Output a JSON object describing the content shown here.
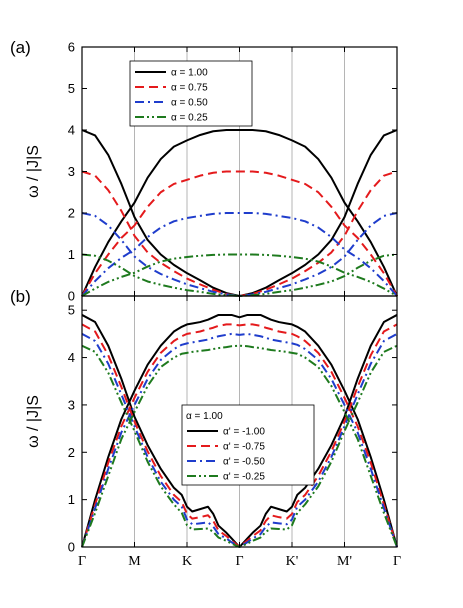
{
  "chart_data": [
    {
      "type": "line",
      "panel_label": "(a)",
      "ylabel": "ω / |J|S",
      "xlabel": "",
      "x_ticks": [
        "Γ",
        "M",
        "K",
        "Γ",
        "K'",
        "M'",
        "Γ"
      ],
      "ylim": [
        0,
        6
      ],
      "y_ticks": [
        0,
        1,
        2,
        3,
        4,
        5,
        6
      ],
      "grid": "vertical lines at high-symmetry points",
      "legend_position": "upper-left",
      "legend_header": "",
      "x": [
        0,
        0.25,
        0.5,
        0.75,
        1,
        1.25,
        1.5,
        1.75,
        2,
        2.25,
        2.5,
        2.75,
        3,
        3.25,
        3.5,
        3.75,
        4,
        4.25,
        4.5,
        4.75,
        5,
        5.25,
        5.5,
        5.75,
        6
      ],
      "series": [
        {
          "name": "α = 1.00",
          "color": "#000000",
          "dash": "solid",
          "branches": [
            [
              4.0,
              3.87,
              3.4,
              2.7,
              1.9,
              1.35,
              1.0,
              0.75,
              0.55,
              0.38,
              0.2,
              0.07,
              0.0,
              0.07,
              0.2,
              0.38,
              0.55,
              0.75,
              1.0,
              1.35,
              1.9,
              2.7,
              3.4,
              3.87,
              4.0
            ],
            [
              0.0,
              0.7,
              1.3,
              1.8,
              2.25,
              2.85,
              3.3,
              3.6,
              3.75,
              3.88,
              3.97,
              4.0,
              4.0,
              4.0,
              3.97,
              3.88,
              3.75,
              3.6,
              3.3,
              2.85,
              2.25,
              1.8,
              1.3,
              0.7,
              0.0
            ]
          ]
        },
        {
          "name": "α = 0.75",
          "color": "#e41a1c",
          "dash": "dash",
          "branches": [
            [
              3.0,
              2.9,
              2.55,
              2.05,
              1.45,
              1.05,
              0.8,
              0.6,
              0.42,
              0.28,
              0.15,
              0.05,
              0.0,
              0.05,
              0.15,
              0.28,
              0.42,
              0.6,
              0.8,
              1.05,
              1.45,
              2.05,
              2.55,
              2.9,
              3.0
            ],
            [
              0.0,
              0.55,
              1.0,
              1.4,
              1.7,
              2.15,
              2.5,
              2.7,
              2.8,
              2.9,
              2.97,
              3.0,
              3.0,
              3.0,
              2.97,
              2.9,
              2.8,
              2.7,
              2.5,
              2.15,
              1.7,
              1.4,
              1.0,
              0.55,
              0.0
            ]
          ]
        },
        {
          "name": "α = 0.50",
          "color": "#1f3dcc",
          "dash": "dashdot",
          "branches": [
            [
              2.0,
              1.93,
              1.7,
              1.35,
              0.95,
              0.7,
              0.53,
              0.4,
              0.28,
              0.19,
              0.1,
              0.04,
              0.0,
              0.04,
              0.1,
              0.19,
              0.28,
              0.4,
              0.53,
              0.7,
              0.95,
              1.35,
              1.7,
              1.93,
              2.0
            ],
            [
              0.0,
              0.36,
              0.67,
              0.92,
              1.12,
              1.42,
              1.65,
              1.8,
              1.88,
              1.93,
              1.98,
              2.0,
              2.0,
              2.0,
              1.98,
              1.93,
              1.88,
              1.8,
              1.65,
              1.42,
              1.12,
              0.92,
              0.67,
              0.36,
              0.0
            ]
          ]
        },
        {
          "name": "α = 0.25",
          "color": "#1e7a1e",
          "dash": "dashdotdot",
          "branches": [
            [
              1.0,
              0.97,
              0.85,
              0.68,
              0.48,
              0.35,
              0.27,
              0.2,
              0.14,
              0.1,
              0.05,
              0.02,
              0.0,
              0.02,
              0.05,
              0.1,
              0.14,
              0.2,
              0.27,
              0.35,
              0.48,
              0.68,
              0.85,
              0.97,
              1.0
            ],
            [
              0.0,
              0.18,
              0.34,
              0.46,
              0.56,
              0.71,
              0.83,
              0.9,
              0.94,
              0.97,
              0.99,
              1.0,
              1.0,
              1.0,
              0.99,
              0.97,
              0.94,
              0.9,
              0.83,
              0.71,
              0.56,
              0.46,
              0.34,
              0.18,
              0.0
            ]
          ]
        }
      ]
    },
    {
      "type": "line",
      "panel_label": "(b)",
      "ylabel": "ω / |J|S",
      "xlabel": "",
      "x_ticks": [
        "Γ",
        "M",
        "K",
        "Γ",
        "K'",
        "M'",
        "Γ"
      ],
      "ylim": [
        0,
        5.3
      ],
      "y_ticks": [
        0,
        1,
        2,
        3,
        4,
        5
      ],
      "grid": "vertical lines at high-symmetry points",
      "legend_position": "center-right",
      "legend_header": "α = 1.00",
      "x": [
        0,
        0.25,
        0.5,
        0.75,
        1,
        1.25,
        1.5,
        1.75,
        1.9,
        2,
        2.1,
        2.25,
        2.4,
        2.5,
        2.6,
        2.75,
        2.85,
        3,
        3.15,
        3.25,
        3.4,
        3.5,
        3.6,
        3.75,
        3.9,
        4,
        4.1,
        4.25,
        4.5,
        4.75,
        5,
        5.25,
        5.5,
        5.75,
        6
      ],
      "series": [
        {
          "name": "α' = -1.00",
          "color": "#000000",
          "dash": "solid",
          "branches": [
            [
              4.9,
              4.75,
              4.25,
              3.55,
              2.75,
              2.15,
              1.65,
              1.25,
              1.1,
              0.85,
              0.75,
              0.8,
              0.85,
              0.7,
              0.45,
              0.3,
              0.18,
              0.0,
              0.18,
              0.3,
              0.45,
              0.7,
              0.85,
              0.8,
              0.75,
              0.85,
              1.1,
              1.25,
              1.65,
              2.15,
              2.75,
              3.55,
              4.25,
              4.75,
              4.9
            ],
            [
              0.0,
              1.0,
              1.9,
              2.7,
              3.3,
              3.85,
              4.25,
              4.55,
              4.65,
              4.7,
              4.72,
              4.75,
              4.8,
              4.85,
              4.9,
              4.9,
              4.9,
              4.85,
              4.9,
              4.9,
              4.9,
              4.85,
              4.8,
              4.75,
              4.72,
              4.7,
              4.65,
              4.55,
              4.25,
              3.85,
              3.3,
              2.7,
              1.9,
              1.0,
              0.0
            ]
          ]
        },
        {
          "name": "α' = -0.75",
          "color": "#e41a1c",
          "dash": "dash",
          "branches": [
            [
              4.7,
              4.55,
              4.05,
              3.38,
              2.65,
              2.02,
              1.5,
              1.1,
              0.95,
              0.7,
              0.6,
              0.63,
              0.67,
              0.55,
              0.35,
              0.23,
              0.14,
              0.0,
              0.14,
              0.23,
              0.35,
              0.55,
              0.67,
              0.63,
              0.6,
              0.7,
              0.95,
              1.1,
              1.5,
              2.02,
              2.65,
              3.38,
              4.05,
              4.55,
              4.7
            ],
            [
              0.0,
              0.9,
              1.78,
              2.55,
              3.15,
              3.7,
              4.1,
              4.35,
              4.45,
              4.5,
              4.52,
              4.55,
              4.6,
              4.63,
              4.67,
              4.7,
              4.7,
              4.68,
              4.7,
              4.7,
              4.67,
              4.63,
              4.6,
              4.55,
              4.52,
              4.5,
              4.45,
              4.35,
              4.1,
              3.7,
              3.15,
              2.55,
              1.78,
              0.9,
              0.0
            ]
          ]
        },
        {
          "name": "α' = -0.50",
          "color": "#1f3dcc",
          "dash": "dashdot",
          "branches": [
            [
              4.5,
              4.35,
              3.87,
              3.22,
              2.55,
              1.9,
              1.38,
              1.0,
              0.85,
              0.58,
              0.48,
              0.5,
              0.52,
              0.43,
              0.27,
              0.18,
              0.1,
              0.0,
              0.1,
              0.18,
              0.27,
              0.43,
              0.52,
              0.5,
              0.48,
              0.58,
              0.85,
              1.0,
              1.38,
              1.9,
              2.55,
              3.22,
              3.87,
              4.35,
              4.5
            ],
            [
              0.0,
              0.82,
              1.65,
              2.42,
              3.0,
              3.55,
              3.95,
              4.18,
              4.27,
              4.3,
              4.32,
              4.35,
              4.38,
              4.42,
              4.45,
              4.48,
              4.5,
              4.48,
              4.5,
              4.48,
              4.45,
              4.42,
              4.38,
              4.35,
              4.32,
              4.3,
              4.27,
              4.18,
              3.95,
              3.55,
              3.0,
              2.42,
              1.65,
              0.82,
              0.0
            ]
          ]
        },
        {
          "name": "α' = -0.25",
          "color": "#1e7a1e",
          "dash": "dashdotdot",
          "branches": [
            [
              4.25,
              4.12,
              3.68,
              3.05,
              2.45,
              1.8,
              1.28,
              0.9,
              0.72,
              0.46,
              0.37,
              0.38,
              0.39,
              0.32,
              0.2,
              0.13,
              0.07,
              0.0,
              0.07,
              0.13,
              0.2,
              0.32,
              0.39,
              0.38,
              0.37,
              0.46,
              0.72,
              0.9,
              1.28,
              1.8,
              2.45,
              3.05,
              3.68,
              4.12,
              4.25
            ],
            [
              0.0,
              0.72,
              1.5,
              2.28,
              2.85,
              3.4,
              3.8,
              4.0,
              4.08,
              4.1,
              4.12,
              4.14,
              4.16,
              4.18,
              4.2,
              4.22,
              4.24,
              4.25,
              4.24,
              4.22,
              4.2,
              4.18,
              4.16,
              4.14,
              4.12,
              4.1,
              4.08,
              4.0,
              3.8,
              3.4,
              2.85,
              2.28,
              1.5,
              0.72,
              0.0
            ]
          ]
        }
      ]
    }
  ]
}
